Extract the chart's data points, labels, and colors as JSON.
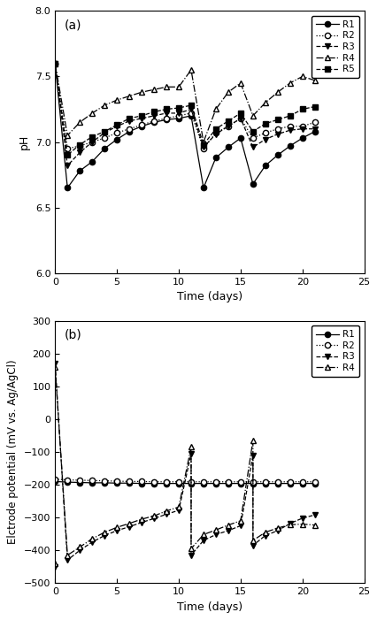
{
  "panel_a": {
    "title": "(a)",
    "xlabel": "Time (days)",
    "ylabel": "pH",
    "xlim": [
      0,
      25
    ],
    "ylim": [
      6.0,
      8.0
    ],
    "xticks": [
      0,
      5,
      10,
      15,
      20,
      25
    ],
    "yticks": [
      6.0,
      6.5,
      7.0,
      7.5,
      8.0
    ],
    "series": {
      "R1": {
        "x": [
          0,
          1,
          2,
          3,
          4,
          5,
          6,
          7,
          8,
          9,
          10,
          11,
          12,
          13,
          14,
          15,
          16,
          17,
          18,
          19,
          20,
          21
        ],
        "y": [
          7.6,
          6.65,
          6.78,
          6.85,
          6.95,
          7.02,
          7.08,
          7.12,
          7.15,
          7.17,
          7.18,
          7.2,
          6.65,
          6.88,
          6.96,
          7.03,
          6.68,
          6.82,
          6.9,
          6.97,
          7.03,
          7.08
        ],
        "linestyle": "-",
        "marker": "o",
        "markerfacecolor": "black",
        "color": "black",
        "markersize": 4.5
      },
      "R2": {
        "x": [
          0,
          1,
          2,
          3,
          4,
          5,
          6,
          7,
          8,
          9,
          10,
          11,
          12,
          13,
          14,
          15,
          16,
          17,
          18,
          19,
          20,
          21
        ],
        "y": [
          7.6,
          6.95,
          6.97,
          7.0,
          7.03,
          7.07,
          7.1,
          7.13,
          7.16,
          7.18,
          7.2,
          7.22,
          6.95,
          7.07,
          7.12,
          7.18,
          7.03,
          7.07,
          7.1,
          7.12,
          7.12,
          7.15
        ],
        "linestyle": ":",
        "marker": "o",
        "markerfacecolor": "white",
        "color": "black",
        "markersize": 4.5
      },
      "R3": {
        "x": [
          0,
          1,
          2,
          3,
          4,
          5,
          6,
          7,
          8,
          9,
          10,
          11,
          12,
          13,
          14,
          15,
          16,
          17,
          18,
          19,
          20,
          21
        ],
        "y": [
          7.6,
          6.82,
          6.92,
          7.0,
          7.07,
          7.12,
          7.16,
          7.18,
          7.2,
          7.22,
          7.22,
          7.25,
          6.96,
          7.06,
          7.12,
          7.18,
          6.96,
          7.02,
          7.06,
          7.09,
          7.1,
          7.1
        ],
        "linestyle": "--",
        "marker": "v",
        "markerfacecolor": "black",
        "color": "black",
        "markersize": 4.5
      },
      "R4": {
        "x": [
          0,
          1,
          2,
          3,
          4,
          5,
          6,
          7,
          8,
          9,
          10,
          11,
          12,
          13,
          14,
          15,
          16,
          17,
          18,
          19,
          20,
          21
        ],
        "y": [
          7.6,
          7.05,
          7.15,
          7.22,
          7.28,
          7.32,
          7.35,
          7.38,
          7.4,
          7.42,
          7.42,
          7.55,
          7.0,
          7.25,
          7.38,
          7.45,
          7.2,
          7.3,
          7.38,
          7.45,
          7.5,
          7.47
        ],
        "linestyle": "-.",
        "marker": "^",
        "markerfacecolor": "white",
        "color": "black",
        "markersize": 4.5
      },
      "R5": {
        "x": [
          0,
          1,
          2,
          3,
          4,
          5,
          6,
          7,
          8,
          9,
          10,
          11,
          12,
          13,
          14,
          15,
          16,
          17,
          18,
          19,
          20,
          21
        ],
        "y": [
          7.6,
          6.9,
          6.98,
          7.04,
          7.08,
          7.13,
          7.18,
          7.2,
          7.23,
          7.25,
          7.26,
          7.28,
          6.98,
          7.1,
          7.16,
          7.22,
          7.08,
          7.14,
          7.17,
          7.2,
          7.25,
          7.27
        ],
        "linestyle": "--",
        "marker": "s",
        "markerfacecolor": "black",
        "color": "black",
        "markersize": 4.5
      }
    }
  },
  "panel_b": {
    "title": "(b)",
    "xlabel": "Time (days)",
    "ylabel": "Elctrode potential (mV vs. Ag/AgCl)",
    "xlim": [
      0,
      25
    ],
    "ylim": [
      -500,
      300
    ],
    "xticks": [
      0,
      5,
      10,
      15,
      20,
      25
    ],
    "yticks": [
      -500,
      -400,
      -300,
      -200,
      -100,
      0,
      100,
      200,
      300
    ],
    "series": {
      "R1": {
        "x": [
          0,
          1,
          2,
          3,
          4,
          5,
          6,
          7,
          8,
          9,
          10,
          11,
          12,
          13,
          14,
          15,
          16,
          17,
          18,
          19,
          20,
          21
        ],
        "y": [
          -190,
          -192,
          -193,
          -194,
          -194,
          -195,
          -195,
          -196,
          -196,
          -196,
          -196,
          -196,
          -196,
          -196,
          -196,
          -196,
          -196,
          -196,
          -196,
          -196,
          -196,
          -196
        ],
        "linestyle": "-",
        "marker": "o",
        "markerfacecolor": "black",
        "color": "black",
        "markersize": 4.5
      },
      "R2": {
        "x": [
          0,
          1,
          2,
          3,
          4,
          5,
          6,
          7,
          8,
          9,
          10,
          11,
          12,
          13,
          14,
          15,
          16,
          17,
          18,
          19,
          20,
          21
        ],
        "y": [
          -183,
          -185,
          -186,
          -187,
          -188,
          -189,
          -190,
          -190,
          -191,
          -191,
          -191,
          -191,
          -191,
          -191,
          -191,
          -191,
          -191,
          -191,
          -191,
          -191,
          -191,
          -191
        ],
        "linestyle": ":",
        "marker": "o",
        "markerfacecolor": "white",
        "color": "black",
        "markersize": 4.5
      },
      "R3": {
        "x": [
          0,
          0,
          1,
          2,
          3,
          4,
          5,
          6,
          7,
          8,
          9,
          10,
          11,
          11,
          12,
          13,
          14,
          15,
          16,
          16,
          17,
          18,
          19,
          20,
          21
        ],
        "y": [
          -450,
          170,
          -430,
          -400,
          -375,
          -355,
          -340,
          -328,
          -315,
          -303,
          -290,
          -278,
          -105,
          -415,
          -370,
          -352,
          -340,
          -325,
          -110,
          -385,
          -355,
          -340,
          -318,
          -302,
          -292
        ],
        "linestyle": "--",
        "marker": "v",
        "markerfacecolor": "black",
        "color": "black",
        "markersize": 4.5
      },
      "R4": {
        "x": [
          0,
          0,
          1,
          2,
          3,
          4,
          5,
          6,
          7,
          8,
          9,
          10,
          11,
          11,
          12,
          13,
          14,
          15,
          16,
          16,
          17,
          18,
          19,
          20,
          21
        ],
        "y": [
          -440,
          160,
          -415,
          -390,
          -365,
          -345,
          -330,
          -318,
          -305,
          -295,
          -280,
          -268,
          -85,
          -395,
          -352,
          -338,
          -323,
          -310,
          -65,
          -370,
          -345,
          -332,
          -322,
          -320,
          -323
        ],
        "linestyle": "-.",
        "marker": "^",
        "markerfacecolor": "white",
        "color": "black",
        "markersize": 4.5
      }
    }
  }
}
